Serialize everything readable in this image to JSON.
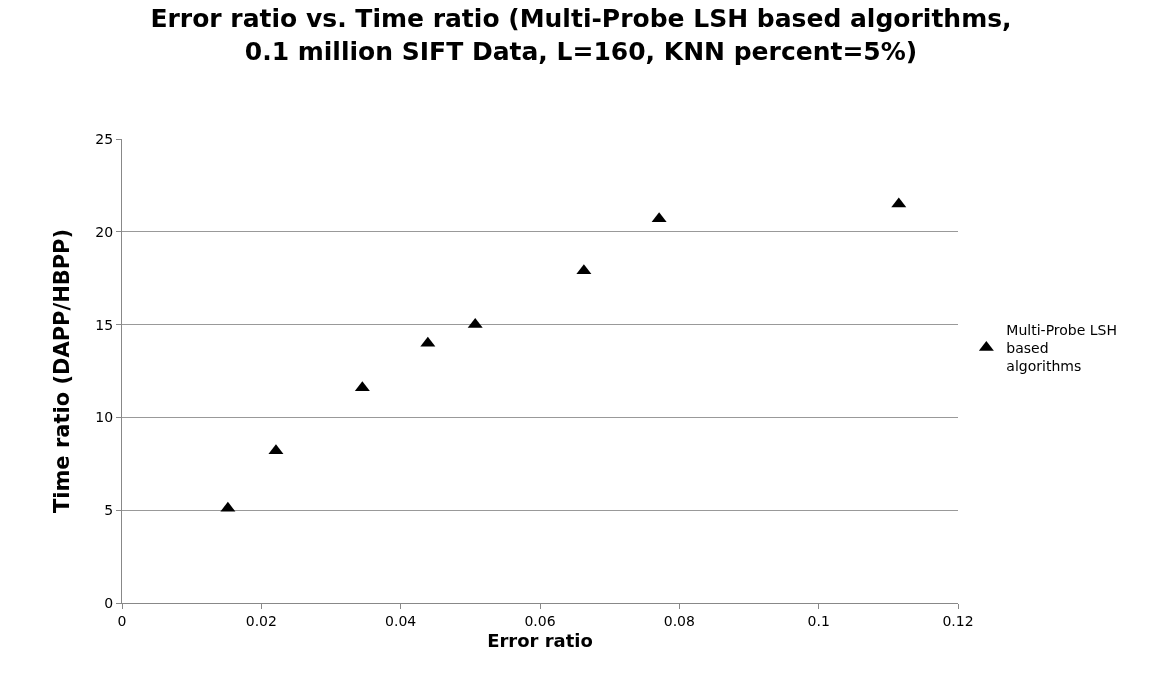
{
  "chart_data": {
    "type": "scatter",
    "title": "Error ratio vs. Time ratio (Multi-Probe LSH based algorithms,\n0.1 million SIFT Data, L=160, KNN percent=5%)",
    "xlabel": "Error ratio",
    "ylabel": "Time ratio (DAPP/HBPP)",
    "x": [
      0.0152,
      0.0221,
      0.0345,
      0.0439,
      0.0507,
      0.0663,
      0.0771,
      0.1115
    ],
    "series": [
      {
        "name": "Multi-Probe LSH based algorithms",
        "color": "#000000",
        "values": [
          5.1,
          8.2,
          11.6,
          14.0,
          15.0,
          17.9,
          20.7,
          21.5
        ]
      }
    ],
    "xlim": [
      0,
      0.12
    ],
    "xticks": [
      0,
      0.02,
      0.04,
      0.06,
      0.08,
      0.1,
      0.12
    ],
    "ylim": [
      0,
      25
    ],
    "yticks": [
      0,
      5,
      10,
      15,
      20,
      25
    ],
    "grid": "y",
    "legend": "right",
    "marker": "triangle"
  }
}
